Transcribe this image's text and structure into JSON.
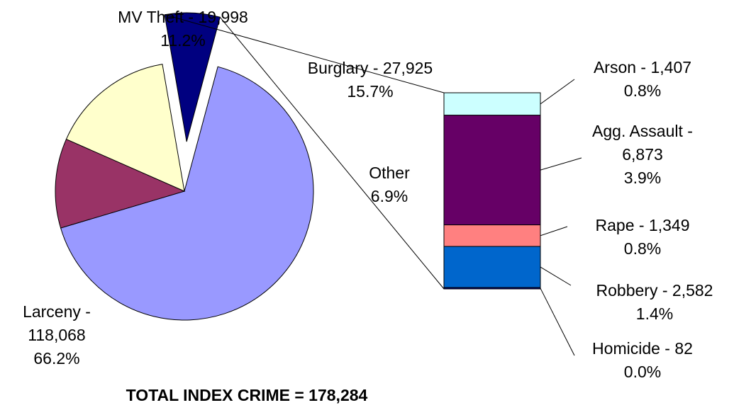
{
  "chart_data": [
    {
      "type": "pie",
      "title": "TOTAL INDEX CRIME = 178,284",
      "slices": [
        {
          "name": "Larceny",
          "value": 118068,
          "percent": 66.2,
          "label_lines": [
            "Larceny -",
            "118,068",
            "66.2%"
          ],
          "color": "#9999ff"
        },
        {
          "name": "MV Theft",
          "value": 19998,
          "percent": 11.2,
          "label_lines": [
            "MV Theft - 19,998",
            "11.2%"
          ],
          "color": "#993366"
        },
        {
          "name": "Burglary",
          "value": 27925,
          "percent": 15.7,
          "label_lines": [
            "Burglary - 27,925",
            "15.7%"
          ],
          "color": "#ffffcc"
        },
        {
          "name": "Other",
          "value": 12293,
          "percent": 6.9,
          "label_lines": [
            "Other",
            "6.9%"
          ],
          "color": "#000080",
          "exploded": true
        }
      ]
    },
    {
      "type": "bar",
      "stacked": true,
      "breakdown_of": "Other",
      "segments": [
        {
          "name": "Arson",
          "value": 1407,
          "percent": 0.8,
          "label_lines": [
            "Arson - 1,407",
            "0.8%"
          ],
          "color": "#ccffff"
        },
        {
          "name": "Agg. Assault",
          "value": 6873,
          "percent": 3.9,
          "label_lines": [
            "Agg. Assault -",
            "6,873",
            "3.9%"
          ],
          "color": "#660066"
        },
        {
          "name": "Rape",
          "value": 1349,
          "percent": 0.8,
          "label_lines": [
            "Rape - 1,349",
            "0.8%"
          ],
          "color": "#ff8080"
        },
        {
          "name": "Robbery",
          "value": 2582,
          "percent": 1.4,
          "label_lines": [
            "Robbery - 2,582",
            "1.4%"
          ],
          "color": "#0066cc"
        },
        {
          "name": "Homicide",
          "value": 82,
          "percent": 0.0,
          "label_lines": [
            "Homicide - 82",
            "0.0%"
          ],
          "color": "#000080"
        }
      ]
    }
  ]
}
